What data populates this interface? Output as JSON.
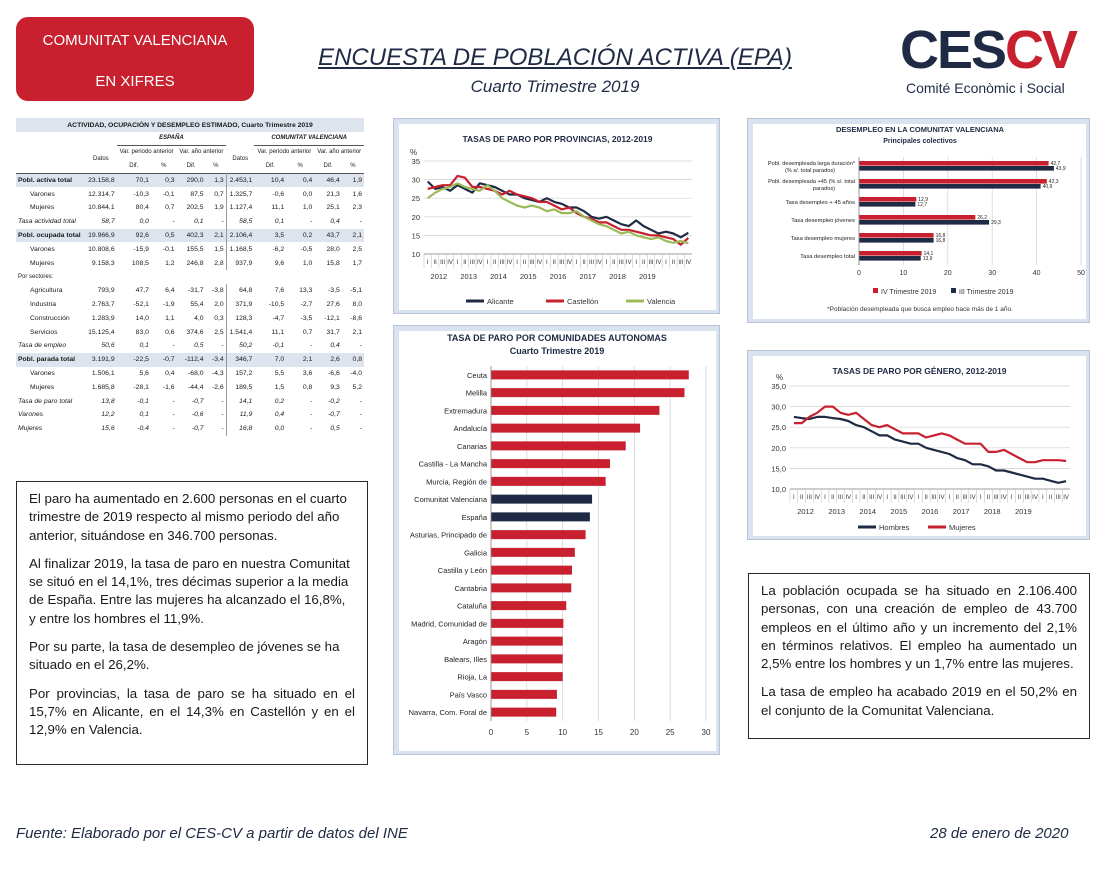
{
  "header": {
    "brand_line1": "COMUNITAT VALENCIANA",
    "brand_line2": "EN XIFRES",
    "title": "ENCUESTA DE POBLACIÓN ACTIVA (EPA)",
    "subtitle": "Cuarto Trimestre 2019",
    "logo_c": "C",
    "logo_es": "ES",
    "logo_cv": "CV",
    "logo_sub": "Comité Econòmic i Social",
    "colors": {
      "brand_red": "#c8202f",
      "navy": "#1f2a44"
    }
  },
  "table": {
    "title": "ACTIVIDAD, OCUPACIÓN Y DESEMPLEO ESTIMADO, Cuarto Trimestre 2019",
    "group_spain": "ESPAÑA",
    "group_cv": "COMUNITAT VALENCIANA",
    "col_datos": "Datos",
    "col_var_periodo": "Var. periodo anterior",
    "col_var_anio": "Var. año anterior",
    "col_dif": "Dif.",
    "col_pct": "%",
    "sectors_label": "Por sectores:",
    "rows": [
      {
        "label": "Pobl. activa total",
        "v": [
          "23.158,8",
          "70,1",
          "0,3",
          "290,0",
          "1,3",
          "2.453,1",
          "10,4",
          "0,4",
          "46,4",
          "1,9"
        ],
        "style": "sec"
      },
      {
        "label": "Varones",
        "v": [
          "12.314,7",
          "-10,3",
          "-0,1",
          "87,5",
          "0,7",
          "1.325,7",
          "-0,6",
          "0,0",
          "21,3",
          "1,6"
        ],
        "style": "ind"
      },
      {
        "label": "Mujeres",
        "v": [
          "10.844,1",
          "80,4",
          "0,7",
          "202,5",
          "1,9",
          "1.127,4",
          "11,1",
          "1,0",
          "25,1",
          "2,3"
        ],
        "style": "ind"
      },
      {
        "label": "Tasa actividad total",
        "v": [
          "58,7",
          "0,0",
          "-",
          "0,1",
          "-",
          "58,5",
          "0,1",
          "-",
          "0,4",
          "-"
        ],
        "style": "ital"
      },
      {
        "label": "Pobl. ocupada total",
        "v": [
          "19.966,9",
          "92,6",
          "0,5",
          "402,3",
          "2,1",
          "2.106,4",
          "3,5",
          "0,2",
          "43,7",
          "2,1"
        ],
        "style": "sec"
      },
      {
        "label": "Varones",
        "v": [
          "10.808,6",
          "-15,9",
          "-0,1",
          "155,5",
          "1,5",
          "1.168,5",
          "-6,2",
          "-0,5",
          "28,0",
          "2,5"
        ],
        "style": "ind"
      },
      {
        "label": "Mujeres",
        "v": [
          "9.158,3",
          "108,5",
          "1,2",
          "246,8",
          "2,8",
          "937,9",
          "9,6",
          "1,0",
          "15,8",
          "1,7"
        ],
        "style": "ind"
      },
      {
        "label": "Agricultura",
        "v": [
          "793,9",
          "47,7",
          "6,4",
          "-31,7",
          "-3,8",
          "64,8",
          "7,6",
          "13,3",
          "-3,5",
          "-5,1"
        ],
        "style": "ind"
      },
      {
        "label": "Industria",
        "v": [
          "2.763,7",
          "-52,1",
          "-1,9",
          "55,4",
          "2,0",
          "371,9",
          "-10,5",
          "-2,7",
          "27,6",
          "8,0"
        ],
        "style": "ind"
      },
      {
        "label": "Construcción",
        "v": [
          "1.283,9",
          "14,0",
          "1,1",
          "4,0",
          "0,3",
          "128,3",
          "-4,7",
          "-3,5",
          "-12,1",
          "-8,6"
        ],
        "style": "ind"
      },
      {
        "label": "Servicios",
        "v": [
          "15.125,4",
          "83,0",
          "0,6",
          "374,6",
          "2,5",
          "1.541,4",
          "11,1",
          "0,7",
          "31,7",
          "2,1"
        ],
        "style": "ind"
      },
      {
        "label": "Tasa de empleo",
        "v": [
          "50,6",
          "0,1",
          "-",
          "0,5",
          "-",
          "50,2",
          "-0,1",
          "-",
          "0,4",
          "-"
        ],
        "style": "ital"
      },
      {
        "label": "Pobl. parada total",
        "v": [
          "3.191,9",
          "-22,5",
          "-0,7",
          "-112,4",
          "-3,4",
          "346,7",
          "7,0",
          "2,1",
          "2,6",
          "0,8"
        ],
        "style": "sec"
      },
      {
        "label": "Varones",
        "v": [
          "1.506,1",
          "5,6",
          "0,4",
          "-68,0",
          "-4,3",
          "157,2",
          "5,5",
          "3,6",
          "-6,6",
          "-4,0"
        ],
        "style": "ind"
      },
      {
        "label": "Mujeres",
        "v": [
          "1.685,8",
          "-28,1",
          "-1,6",
          "-44,4",
          "-2,6",
          "189,5",
          "1,5",
          "0,8",
          "9,3",
          "5,2"
        ],
        "style": "ind"
      },
      {
        "label": "Tasa de paro total",
        "v": [
          "13,8",
          "-0,1",
          "-",
          "-0,7",
          "-",
          "14,1",
          "0,2",
          "-",
          "-0,2",
          "-"
        ],
        "style": "ital"
      },
      {
        "label": "Varones",
        "v": [
          "12,2",
          "0,1",
          "-",
          "-0,6",
          "-",
          "11,9",
          "0,4",
          "-",
          "-0,7",
          "-"
        ],
        "style": "ital"
      },
      {
        "label": "Mujeres",
        "v": [
          "15,6",
          "-0,4",
          "-",
          "-0,7",
          "-",
          "16,8",
          "0,0",
          "-",
          "0,5",
          "-"
        ],
        "style": "ital"
      }
    ]
  },
  "text_left": {
    "p1": "El paro ha aumentado en 2.600 personas en el cuarto trimestre de 2019 respecto al mismo periodo del año anterior, situándose en 346.700 personas.",
    "p2": "Al finalizar 2019, la tasa de paro en nuestra Comunitat se situó en el 14,1%, tres décimas superior a la media de España. Entre las mujeres ha alcanzado el 16,8%, y entre los hombres el 11,9%.",
    "p3": "Por su parte, la tasa de desempleo de jóvenes se ha situado en el 26,2%.",
    "p4": "Por provincias, la tasa de paro se ha situado en el 15,7% en Alicante, en el 14,3% en Castellón y en el 12,9% en Valencia."
  },
  "text_right": {
    "p1": "La población ocupada se ha situado en 2.106.400 personas, con una creación de empleo de 43.700 empleos en el último año y un incremento del 2,1% en términos relativos. El empleo ha aumentado un 2,5% entre los hombres y un 1,7% entre las mujeres.",
    "p2": "La tasa de empleo ha acabado 2019 en el 50,2% en el conjunto de la Comunitat Valenciana."
  },
  "footer": {
    "source": "Fuente: Elaborado por el CES-CV a partir de datos del INE",
    "date": "28 de enero de 2020"
  },
  "chart_data": [
    {
      "id": "provincias",
      "type": "line",
      "title": "TASAS DE PARO POR PROVINCIAS, 2012-2019",
      "ylabel": "%",
      "ylim": [
        10,
        35
      ],
      "yticks": [
        "10",
        "15",
        "20",
        "25",
        "30",
        "35"
      ],
      "quarter_labels": [
        "I",
        "II",
        "III",
        "IV"
      ],
      "years": [
        "2012",
        "2013",
        "2014",
        "2015",
        "2016",
        "2017",
        "2018",
        "2019"
      ],
      "colors": {
        "Alicante": "#1f2a44",
        "Castellón": "#c8202f",
        "Valencia": "#9bbb59"
      },
      "series": [
        {
          "name": "Alicante",
          "values": [
            29.5,
            27.5,
            28.0,
            27.0,
            28.5,
            27.5,
            26.5,
            29.0,
            28.5,
            28.0,
            27.0,
            26.0,
            26.0,
            25.0,
            24.5,
            24.0,
            25.0,
            24.0,
            23.5,
            22.5,
            22.5,
            21.5,
            20.0,
            19.5,
            20.0,
            19.0,
            18.0,
            17.5,
            19.0,
            17.5,
            16.5,
            15.5,
            16.0,
            15.5,
            14.5,
            15.7
          ]
        },
        {
          "name": "Castellón",
          "values": [
            27.5,
            28.0,
            28.5,
            28.5,
            31.0,
            30.5,
            28.0,
            28.0,
            27.5,
            27.0,
            26.0,
            27.0,
            26.0,
            25.5,
            25.0,
            24.0,
            24.0,
            23.0,
            22.0,
            22.5,
            21.0,
            20.0,
            19.5,
            18.5,
            18.5,
            17.5,
            16.5,
            16.5,
            16.0,
            15.5,
            15.0,
            15.0,
            14.5,
            14.0,
            12.5,
            14.3
          ]
        },
        {
          "name": "Valencia",
          "values": [
            25.0,
            26.5,
            27.5,
            28.0,
            29.0,
            28.0,
            27.5,
            27.0,
            28.5,
            27.0,
            25.0,
            24.0,
            23.0,
            22.5,
            23.0,
            22.5,
            21.5,
            22.0,
            21.0,
            21.0,
            21.5,
            20.0,
            19.0,
            18.0,
            17.5,
            16.5,
            15.5,
            16.0,
            15.0,
            14.5,
            14.0,
            14.5,
            13.5,
            13.0,
            13.5,
            12.9
          ]
        }
      ]
    },
    {
      "id": "ccaa",
      "type": "bar",
      "title": "TASA DE PARO POR COMUNIDADES AUTONOMAS",
      "subtitle": "Cuarto Trimestre 2019",
      "xlim": [
        0,
        30
      ],
      "xticks": [
        "0",
        "5",
        "10",
        "15",
        "20",
        "25",
        "30"
      ],
      "colors": {
        "default": "#c8202f",
        "highlight": "#1f2a44"
      },
      "categories": [
        "Ceuta",
        "Melilla",
        "Extremadura",
        "Andalucía",
        "Canarias",
        "Castilla - La Mancha",
        "Murcia, Región de",
        "Comunitat Valenciana",
        "España",
        "Asturias, Principado de",
        "Galicia",
        "Castilla y León",
        "Cantabria",
        "Cataluña",
        "Madrid, Comunidad de",
        "Aragón",
        "Balears, Illes",
        "Rioja, La",
        "País Vasco",
        "Navarra, Com. Foral de"
      ],
      "values": [
        27.6,
        27.0,
        23.5,
        20.8,
        18.8,
        16.6,
        16.0,
        14.1,
        13.8,
        13.2,
        11.7,
        11.3,
        11.2,
        10.5,
        10.1,
        10.0,
        10.0,
        10.0,
        9.2,
        9.1
      ],
      "highlight": [
        "Comunitat Valenciana",
        "España"
      ]
    },
    {
      "id": "colectivos",
      "type": "bar",
      "title": "DESEMPLEO EN LA COMUNITAT VALENCIANA",
      "subtitle": "Principales colectivos",
      "xlim": [
        0,
        50
      ],
      "xticks": [
        "0",
        "10",
        "20",
        "30",
        "40",
        "50"
      ],
      "footnote": "*Población desempleada que busca empleo hace más de 1 año.",
      "colors": {
        "IV Trimestre 2019": "#c8202f",
        "III Trimestre 2019": "#1f2a44"
      },
      "categories": [
        {
          "line1": "Pobl. desempleada larga duración*",
          "line2": "(% s/. total parados)"
        },
        {
          "line1": "Pobl. desempleada +45 (% s/. total",
          "line2": "parados)"
        },
        {
          "line1": "Tasa desempleo + 45 años",
          "line2": ""
        },
        {
          "line1": "Tasa desempleo jóvenes",
          "line2": ""
        },
        {
          "line1": "Tasa desempleo mujeres",
          "line2": ""
        },
        {
          "line1": "Tasa desempleo total",
          "line2": ""
        }
      ],
      "series": [
        {
          "name": "IV Trimestre 2019",
          "values": [
            42.7,
            42.3,
            12.9,
            26.2,
            16.8,
            14.1
          ],
          "labels": [
            "42,7",
            "42,3",
            "12,9",
            "26,2",
            "16,8",
            "14,1"
          ]
        },
        {
          "name": "III Trimestre 2019",
          "values": [
            43.9,
            40.9,
            12.7,
            29.3,
            16.8,
            13.9
          ],
          "labels": [
            "43,9",
            "40,9",
            "12,7",
            "29,3",
            "16,8",
            "13,9"
          ]
        }
      ]
    },
    {
      "id": "genero",
      "type": "line",
      "title": "TASAS DE PARO POR GÉNERO, 2012-2019",
      "ylabel": "%",
      "ylim": [
        10,
        35
      ],
      "yticks": [
        "10,0",
        "15,0",
        "20,0",
        "25,0",
        "30,0",
        "35,0"
      ],
      "quarter_labels": [
        "I",
        "II",
        "III",
        "IV"
      ],
      "years": [
        "2012",
        "2013",
        "2014",
        "2015",
        "2016",
        "2017",
        "2018",
        "2019"
      ],
      "colors": {
        "Hombres": "#1f2a44",
        "Mujeres": "#c8202f"
      },
      "series": [
        {
          "name": "Hombres",
          "values": [
            27.5,
            27.2,
            27.0,
            27.5,
            27.5,
            27.2,
            27.0,
            26.5,
            25.5,
            25.0,
            24.0,
            23.0,
            23.0,
            22.0,
            21.5,
            21.0,
            21.0,
            20.0,
            19.5,
            19.0,
            18.5,
            17.5,
            17.0,
            16.0,
            16.0,
            15.5,
            14.5,
            14.5,
            14.0,
            13.5,
            13.0,
            12.5,
            12.5,
            12.0,
            11.5,
            11.9
          ]
        },
        {
          "name": "Mujeres",
          "values": [
            26.0,
            26.0,
            27.5,
            28.5,
            30.0,
            30.0,
            28.5,
            28.0,
            28.5,
            27.0,
            25.5,
            25.0,
            25.5,
            24.5,
            23.5,
            23.5,
            23.5,
            22.5,
            23.0,
            23.5,
            23.0,
            22.0,
            21.0,
            21.0,
            21.0,
            19.0,
            19.0,
            19.5,
            18.5,
            17.5,
            16.5,
            16.5,
            17.0,
            17.0,
            17.0,
            16.8
          ]
        }
      ]
    }
  ]
}
